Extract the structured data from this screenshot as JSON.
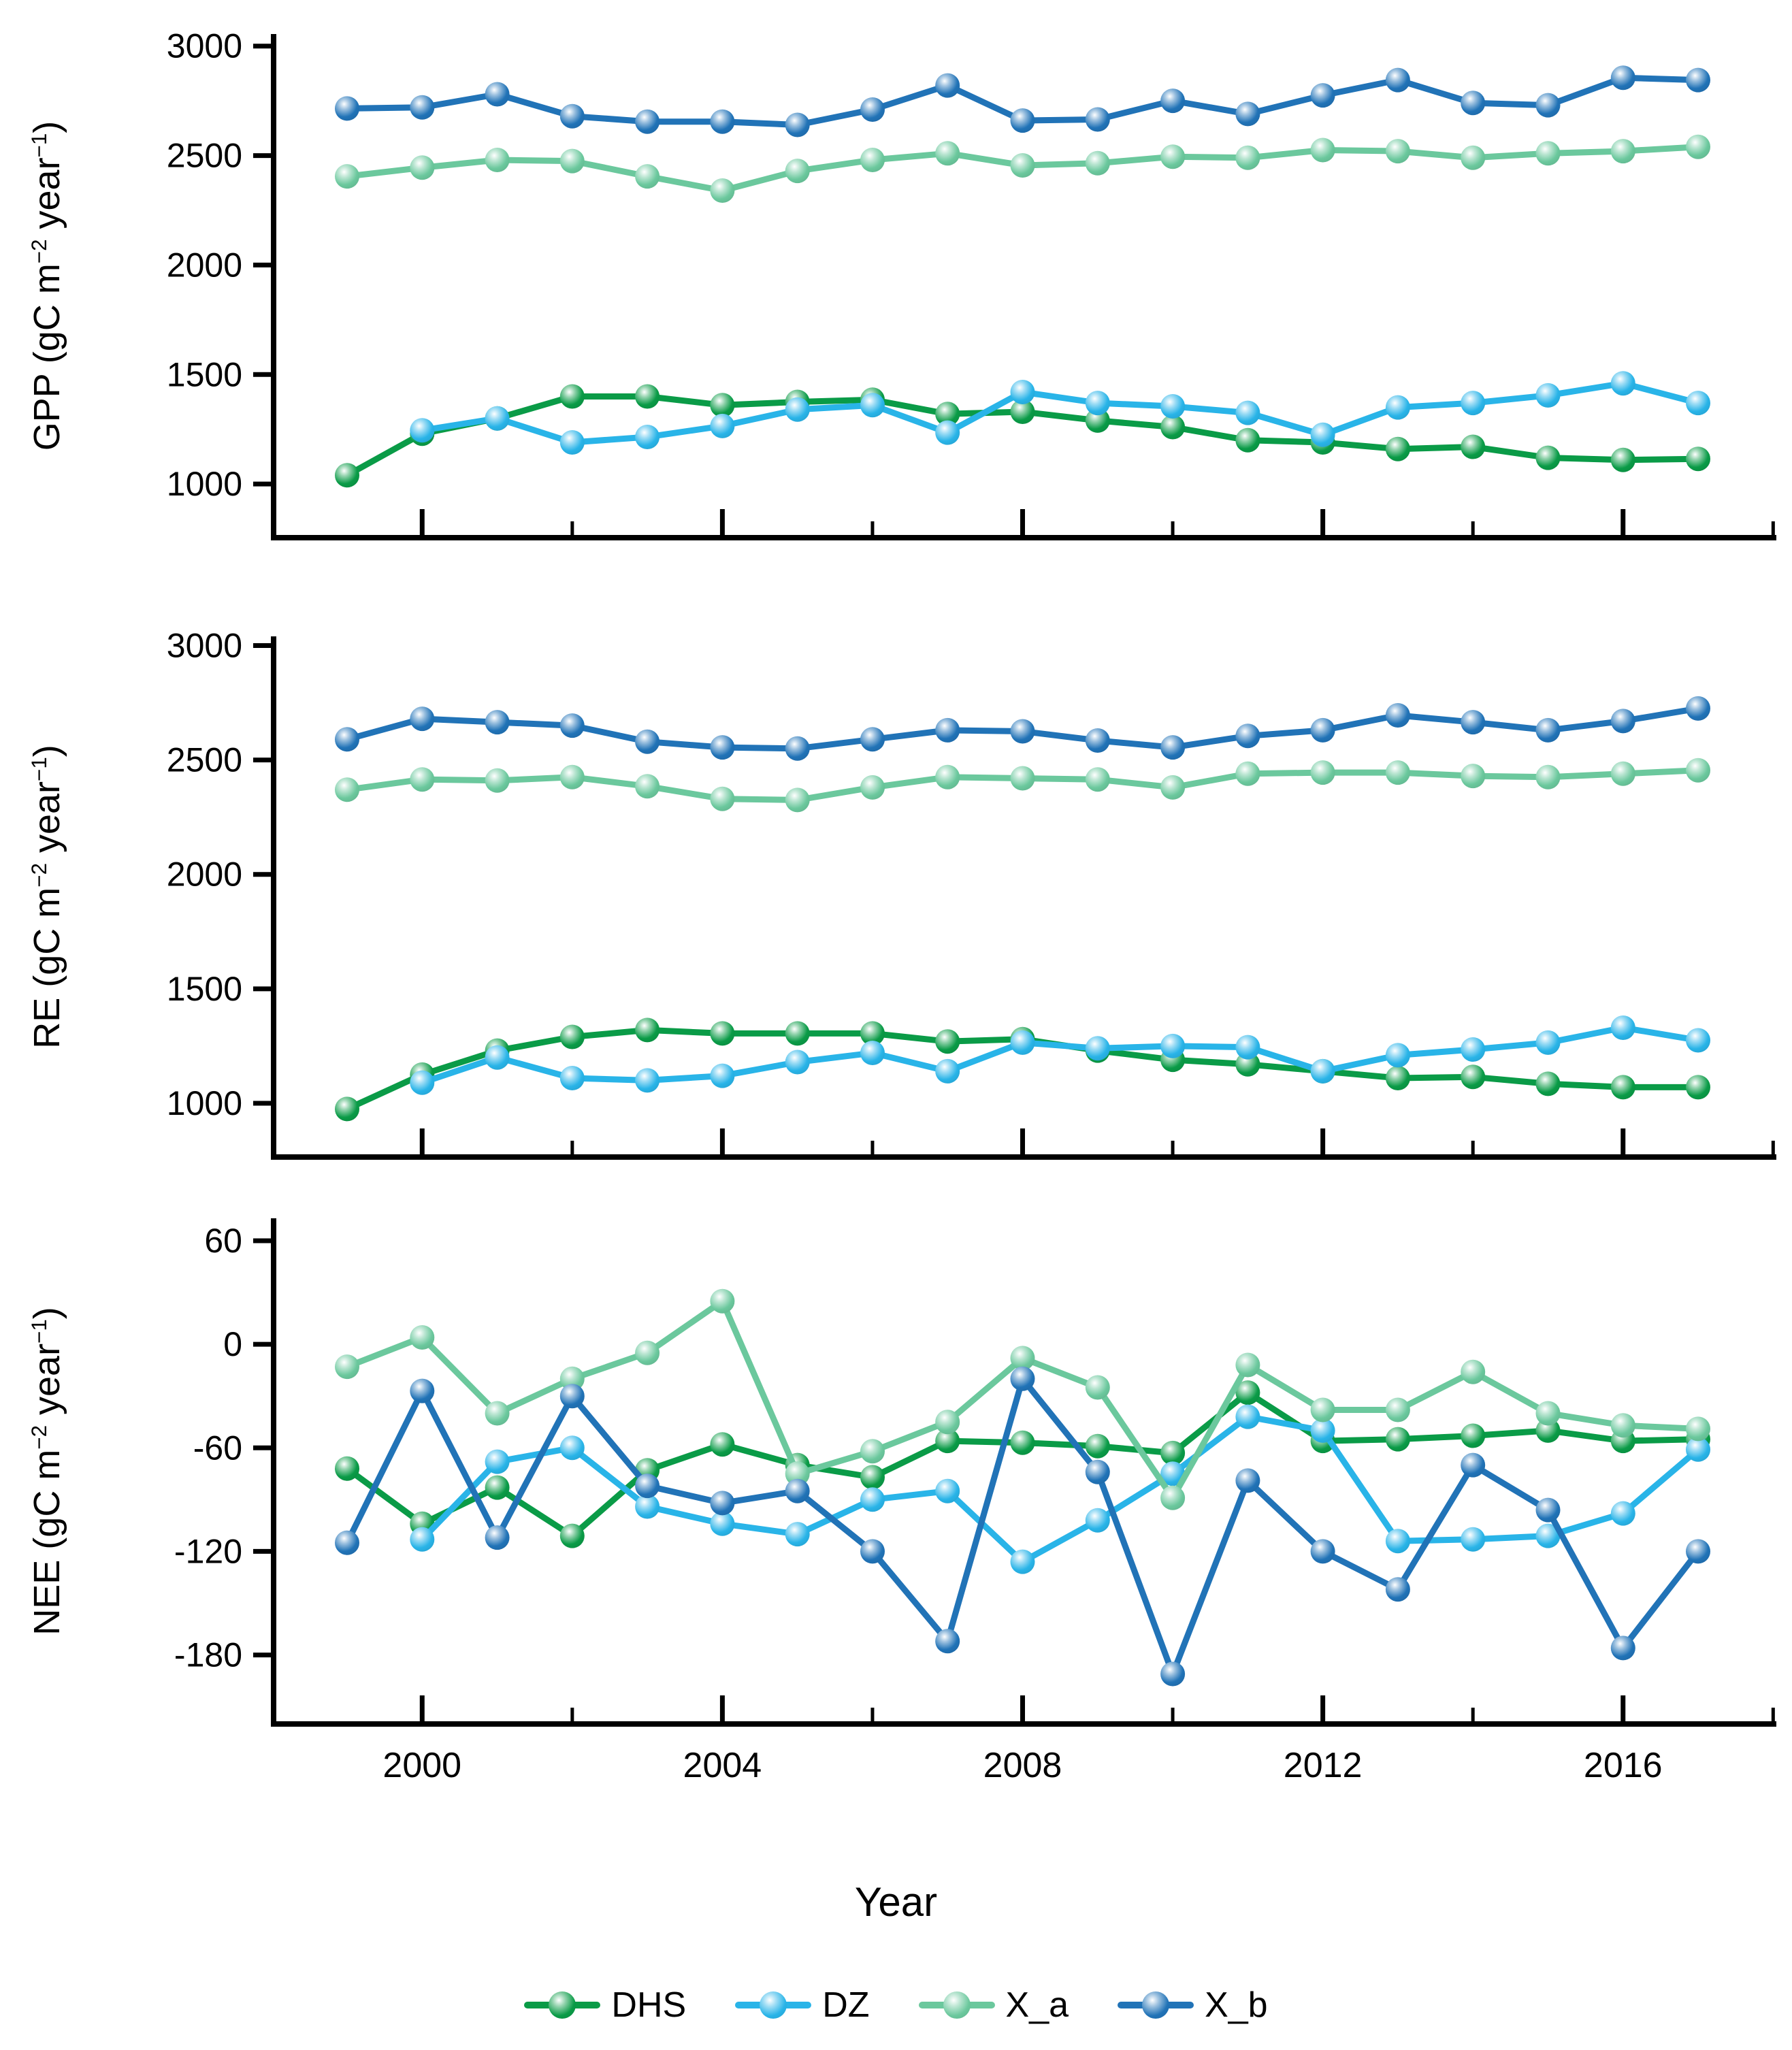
{
  "figure": {
    "x_title": "Year",
    "background": "#ffffff",
    "axis_color": "#000000"
  },
  "legend": {
    "items": [
      {
        "label": "DHS",
        "color": "#0a9b47"
      },
      {
        "label": "DZ",
        "color": "#29b4e8"
      },
      {
        "label": "X_a",
        "color": "#6bc89d"
      },
      {
        "label": "X_b",
        "color": "#2173b7"
      }
    ]
  },
  "chart_data": [
    {
      "type": "line",
      "name": "gpp",
      "ylabel": {
        "measure": "GPP",
        "open": " (gC m",
        "sup_a": "−2",
        "mid": " year",
        "sup_b": "−1",
        "close": ")"
      },
      "ylim": [
        755,
        3055
      ],
      "yticks": [
        1000,
        1500,
        2000,
        2500,
        3000
      ],
      "x": [
        1999,
        2000,
        2001,
        2002,
        2003,
        2004,
        2005,
        2006,
        2007,
        2008,
        2009,
        2010,
        2011,
        2012,
        2013,
        2014,
        2015,
        2016,
        2017
      ],
      "xticks": {
        "major": [
          2000,
          2004,
          2008,
          2012,
          2016
        ],
        "minor": [
          2002,
          2006,
          2010,
          2014,
          2018
        ],
        "labels": []
      },
      "grid": false,
      "series": [
        {
          "name": "DHS",
          "color": "#0a9b47",
          "values": [
            1040,
            1230,
            1300,
            1400,
            1400,
            1360,
            1375,
            1385,
            1320,
            1330,
            1290,
            1260,
            1200,
            1190,
            1160,
            1170,
            1120,
            1110,
            1115
          ]
        },
        {
          "name": "DZ",
          "color": "#29b4e8",
          "values": [
            null,
            1245,
            1300,
            1190,
            1215,
            1265,
            1340,
            1360,
            1235,
            1420,
            1370,
            1355,
            1325,
            1225,
            1350,
            1370,
            1405,
            1460,
            1370
          ]
        },
        {
          "name": "X_a",
          "color": "#6bc89d",
          "values": [
            2405,
            2445,
            2480,
            2475,
            2405,
            2340,
            2430,
            2480,
            2510,
            2455,
            2465,
            2495,
            2490,
            2525,
            2520,
            2490,
            2510,
            2520,
            2540
          ]
        },
        {
          "name": "X_b",
          "color": "#2173b7",
          "values": [
            2715,
            2720,
            2780,
            2680,
            2655,
            2655,
            2640,
            2710,
            2820,
            2660,
            2665,
            2750,
            2690,
            2775,
            2845,
            2740,
            2730,
            2855,
            2845
          ]
        }
      ]
    },
    {
      "type": "line",
      "name": "re",
      "ylabel": {
        "measure": "RE",
        "open": " (gC m",
        "sup_a": "−2",
        "mid": " year",
        "sup_b": "−1",
        "close": ")"
      },
      "ylim": [
        765,
        3040
      ],
      "yticks": [
        1000,
        1500,
        2000,
        2500,
        3000
      ],
      "x": [
        1999,
        2000,
        2001,
        2002,
        2003,
        2004,
        2005,
        2006,
        2007,
        2008,
        2009,
        2010,
        2011,
        2012,
        2013,
        2014,
        2015,
        2016,
        2017
      ],
      "xticks": {
        "major": [
          2000,
          2004,
          2008,
          2012,
          2016
        ],
        "minor": [
          2002,
          2006,
          2010,
          2014,
          2018
        ],
        "labels": []
      },
      "grid": false,
      "series": [
        {
          "name": "DHS",
          "color": "#0a9b47",
          "values": [
            975,
            1125,
            1230,
            1290,
            1320,
            1305,
            1305,
            1305,
            1270,
            1280,
            1230,
            1190,
            1170,
            1140,
            1110,
            1115,
            1085,
            1070,
            1070
          ]
        },
        {
          "name": "DZ",
          "color": "#29b4e8",
          "values": [
            null,
            1090,
            1200,
            1110,
            1100,
            1120,
            1180,
            1220,
            1140,
            1265,
            1240,
            1250,
            1245,
            1140,
            1210,
            1235,
            1265,
            1330,
            1275
          ]
        },
        {
          "name": "X_a",
          "color": "#6bc89d",
          "values": [
            2370,
            2415,
            2410,
            2425,
            2385,
            2330,
            2325,
            2380,
            2425,
            2420,
            2415,
            2380,
            2440,
            2445,
            2445,
            2430,
            2425,
            2440,
            2455
          ]
        },
        {
          "name": "X_b",
          "color": "#2173b7",
          "values": [
            2590,
            2680,
            2665,
            2650,
            2580,
            2555,
            2550,
            2590,
            2630,
            2625,
            2585,
            2555,
            2605,
            2630,
            2695,
            2665,
            2630,
            2670,
            2725
          ]
        }
      ]
    },
    {
      "type": "line",
      "name": "nee",
      "ylabel": {
        "measure": "NEE",
        "open": " (gC m",
        "sup_a": "−2",
        "mid": " year",
        "sup_b": "−1",
        "close": ")"
      },
      "ylim": [
        -220,
        73
      ],
      "yticks": [
        60,
        0,
        -60,
        -120,
        -180
      ],
      "x": [
        1999,
        2000,
        2001,
        2002,
        2003,
        2004,
        2005,
        2006,
        2007,
        2008,
        2009,
        2010,
        2011,
        2012,
        2013,
        2014,
        2015,
        2016,
        2017
      ],
      "xticks": {
        "major": [
          2000,
          2004,
          2008,
          2012,
          2016
        ],
        "minor": [
          2002,
          2006,
          2010,
          2014,
          2018
        ],
        "labels": [
          "2000",
          "2004",
          "2008",
          "2012",
          "2016"
        ]
      },
      "grid": false,
      "series": [
        {
          "name": "DHS",
          "color": "#0a9b47",
          "values": [
            -72,
            -104,
            -83,
            -111,
            -73,
            -58,
            -70,
            -77,
            -56,
            -57,
            -59,
            -63,
            -28,
            -56,
            -55,
            -53,
            -50,
            -56,
            -55
          ]
        },
        {
          "name": "DZ",
          "color": "#29b4e8",
          "values": [
            null,
            -113,
            -68,
            -60,
            -94,
            -104,
            -110,
            -90,
            -85,
            -126,
            -102,
            -75,
            -42,
            -50,
            -114,
            -113,
            -111,
            -98,
            -61
          ]
        },
        {
          "name": "X_a",
          "color": "#6bc89d",
          "values": [
            -13,
            4,
            -40,
            -20,
            -5,
            25,
            -75,
            -62,
            -45,
            -8,
            -25,
            -89,
            -12,
            -38,
            -38,
            -16,
            -40,
            -47,
            -49
          ]
        },
        {
          "name": "X_b",
          "color": "#2173b7",
          "values": [
            -115,
            -27,
            -112,
            -30,
            -82,
            -92,
            -85,
            -120,
            -172,
            -20,
            -74,
            -191,
            -79,
            -120,
            -142,
            -70,
            -96,
            -176,
            -120
          ]
        }
      ]
    }
  ]
}
